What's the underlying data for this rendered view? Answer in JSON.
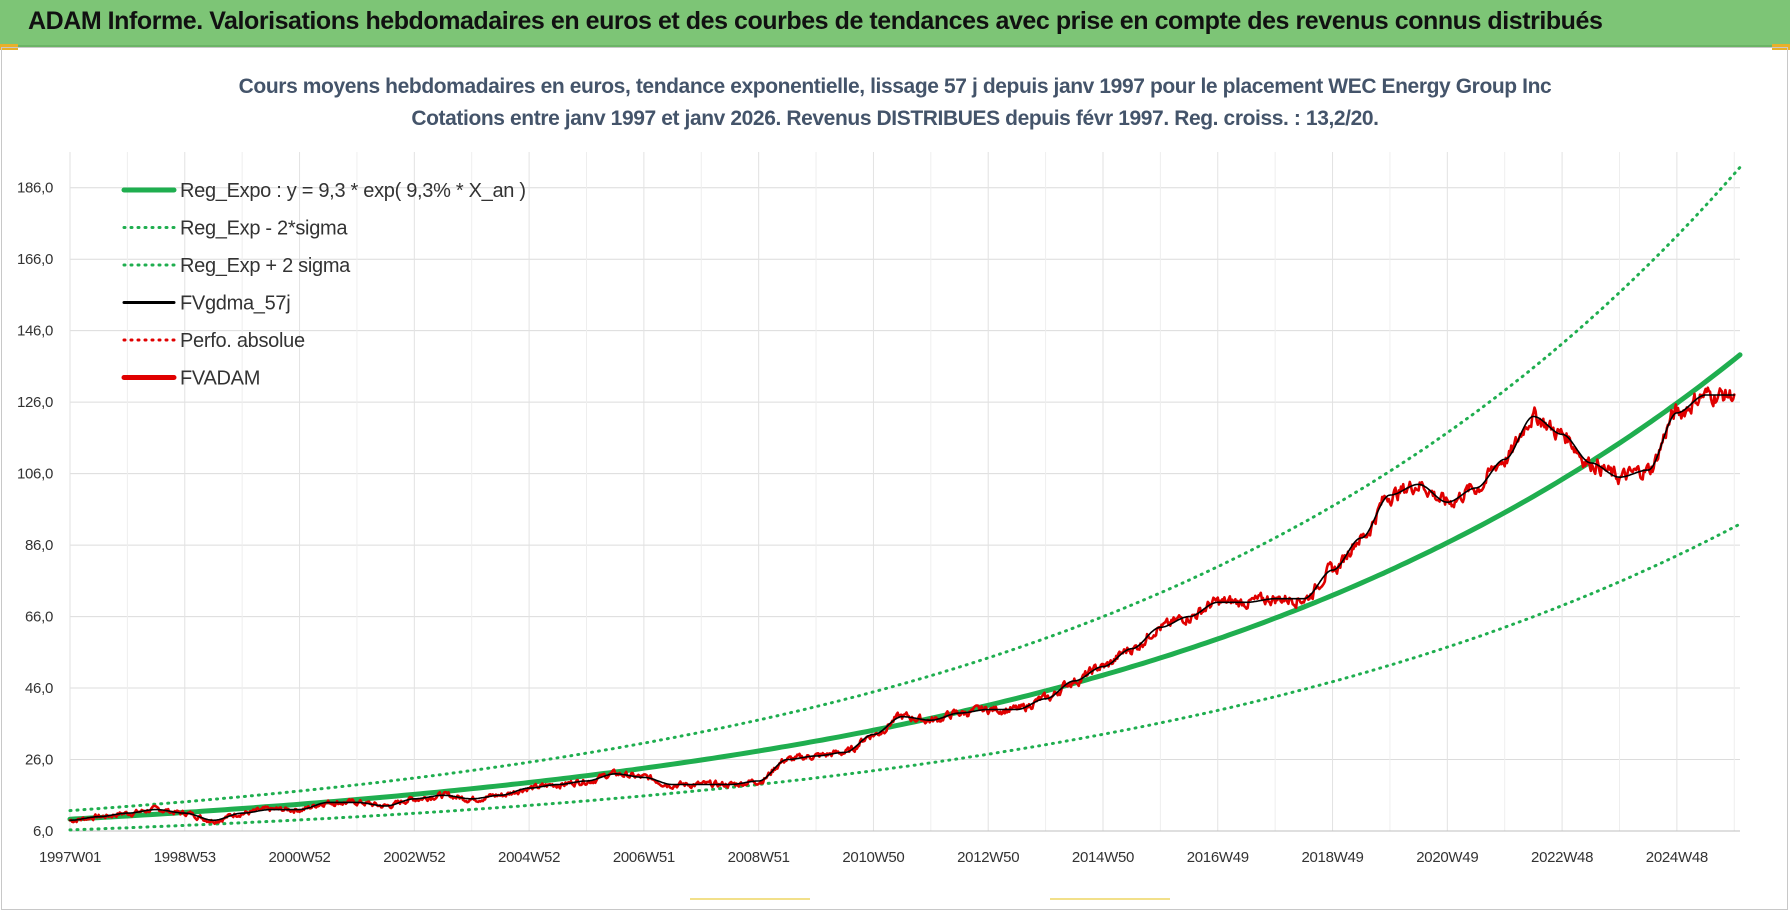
{
  "banner": {
    "title": "ADAM Informe. Valorisations hebdomadaires en euros et des courbes de tendances avec prise en compte des revenus connus distribués",
    "color": "#7dc576"
  },
  "chart_data": {
    "type": "line",
    "title": "Cours moyens hebdomadaires en euros, tendance exponentielle, lissage 57 j depuis janv 1997 pour le placement WEC Energy Group Inc",
    "subtitle": "Cotations entre janv 1997 et janv 2026. Revenus DISTRIBUES depuis févr 1997. Reg. croiss. : 13,2/20.",
    "xlabel": "",
    "ylabel": "",
    "x_ticks": [
      "1997W01",
      "1998W53",
      "2000W52",
      "2002W52",
      "2004W52",
      "2006W51",
      "2008W51",
      "2010W50",
      "2012W50",
      "2014W50",
      "2016W49",
      "2018W49",
      "2020W49",
      "2022W48",
      "2024W48"
    ],
    "x_range": [
      1997.0,
      2026.1
    ],
    "y_ticks": [
      "6,0",
      "26,0",
      "46,0",
      "66,0",
      "86,0",
      "106,0",
      "126,0",
      "146,0",
      "166,0",
      "186,0"
    ],
    "ylim": [
      6,
      196
    ],
    "grid": true,
    "legend_position": "top-left",
    "series": [
      {
        "name": "Reg_Expo : y = 9,3 * exp( 9,3% *  X_an )",
        "style": "solid-thick",
        "color": "#1fae4f",
        "formula": {
          "a": 9.3,
          "rate": 0.093,
          "x0": 1997.0
        }
      },
      {
        "name": "Reg_Exp - 2*sigma",
        "style": "dotted",
        "color": "#1fae4f",
        "formula": {
          "a": 6.3,
          "rate": 0.0921,
          "x0": 1997.0
        }
      },
      {
        "name": "Reg_Exp + 2 sigma",
        "style": "dotted",
        "color": "#1fae4f",
        "formula": {
          "a": 11.7,
          "rate": 0.0961,
          "x0": 1997.0
        }
      },
      {
        "name": "FVgdma_57j",
        "style": "solid",
        "color": "#000000",
        "x": [
          1997.0,
          1997.5,
          1998.0,
          1998.5,
          1999.0,
          1999.5,
          2000.0,
          2000.5,
          2001.0,
          2001.5,
          2002.0,
          2002.5,
          2003.0,
          2003.5,
          2004.0,
          2004.5,
          2005.0,
          2005.5,
          2006.0,
          2006.5,
          2007.0,
          2007.5,
          2008.0,
          2008.5,
          2009.0,
          2009.5,
          2010.0,
          2010.5,
          2011.0,
          2011.5,
          2012.0,
          2012.5,
          2013.0,
          2013.5,
          2014.0,
          2014.5,
          2015.0,
          2015.5,
          2016.0,
          2016.5,
          2017.0,
          2017.5,
          2018.0,
          2018.5,
          2019.0,
          2019.5,
          2020.0,
          2020.5,
          2021.0,
          2021.5,
          2022.0,
          2022.5,
          2023.0,
          2023.5,
          2024.0,
          2024.5,
          2025.0,
          2025.5,
          2026.0
        ],
        "values": [
          9,
          10,
          11,
          12,
          11,
          9,
          11,
          12,
          12,
          14,
          14,
          13,
          15,
          16,
          15,
          16,
          18,
          19,
          20,
          22,
          21,
          19,
          19,
          19,
          20,
          26,
          27,
          28,
          33,
          38,
          37,
          39,
          40,
          40,
          43,
          48,
          52,
          57,
          63,
          66,
          70,
          70,
          71,
          71,
          79,
          88,
          100,
          103,
          98,
          102,
          110,
          122,
          117,
          109,
          105,
          107,
          123,
          128,
          128
        ],
        "smooth_window": 0
      },
      {
        "name": "Perfo. absolue",
        "style": "dotted",
        "color": "#e00000",
        "x": [
          1997.0,
          1997.5,
          1998.0,
          1998.5,
          1999.0,
          1999.5,
          2000.0,
          2000.5,
          2001.0,
          2001.5,
          2002.0,
          2002.5,
          2003.0,
          2003.5,
          2004.0,
          2004.5,
          2005.0,
          2005.5,
          2006.0,
          2006.5,
          2007.0,
          2007.5,
          2008.0,
          2008.5,
          2009.0,
          2009.5,
          2010.0,
          2010.5,
          2011.0,
          2011.5,
          2012.0,
          2012.5,
          2013.0,
          2013.5,
          2014.0,
          2014.5,
          2015.0,
          2015.5,
          2016.0,
          2016.5,
          2017.0,
          2017.5,
          2018.0,
          2018.5,
          2019.0,
          2019.5,
          2020.0,
          2020.5,
          2021.0,
          2021.5,
          2022.0,
          2022.5,
          2023.0,
          2023.5,
          2024.0,
          2024.5,
          2025.0,
          2025.5,
          2026.0
        ],
        "values": [
          9,
          10,
          11,
          12,
          11,
          9,
          11,
          12,
          12,
          14,
          14,
          13,
          15,
          16,
          15,
          16,
          18,
          19,
          20,
          22,
          21,
          19,
          19,
          19,
          20,
          26,
          27,
          28,
          33,
          38,
          37,
          39,
          40,
          40,
          43,
          48,
          52,
          57,
          63,
          66,
          70,
          70,
          71,
          71,
          79,
          88,
          100,
          103,
          98,
          102,
          110,
          122,
          117,
          109,
          105,
          107,
          123,
          128,
          128
        ]
      },
      {
        "name": "FVADAM",
        "style": "solid-thick",
        "color": "#e00000",
        "x": [
          1997.0,
          1997.5,
          1998.0,
          1998.5,
          1999.0,
          1999.5,
          2000.0,
          2000.5,
          2001.0,
          2001.5,
          2002.0,
          2002.5,
          2003.0,
          2003.5,
          2004.0,
          2004.5,
          2005.0,
          2005.5,
          2006.0,
          2006.5,
          2007.0,
          2007.5,
          2008.0,
          2008.5,
          2009.0,
          2009.5,
          2010.0,
          2010.5,
          2011.0,
          2011.5,
          2012.0,
          2012.5,
          2013.0,
          2013.5,
          2014.0,
          2014.5,
          2015.0,
          2015.5,
          2016.0,
          2016.5,
          2017.0,
          2017.5,
          2018.0,
          2018.5,
          2019.0,
          2019.5,
          2020.0,
          2020.5,
          2021.0,
          2021.5,
          2022.0,
          2022.5,
          2023.0,
          2023.5,
          2024.0,
          2024.5,
          2025.0,
          2025.5,
          2026.0
        ],
        "values": [
          9,
          10,
          11,
          12,
          11,
          9,
          11,
          12,
          12,
          14,
          14,
          13,
          15,
          16,
          15,
          16,
          18,
          19,
          20,
          22,
          21,
          19,
          19,
          19,
          20,
          26,
          27,
          28,
          33,
          38,
          37,
          39,
          40,
          40,
          43,
          48,
          52,
          57,
          63,
          66,
          70,
          70,
          71,
          71,
          79,
          88,
          100,
          103,
          98,
          102,
          110,
          122,
          117,
          109,
          105,
          107,
          123,
          128,
          128
        ],
        "noise": 1.0
      }
    ],
    "annotations": []
  }
}
